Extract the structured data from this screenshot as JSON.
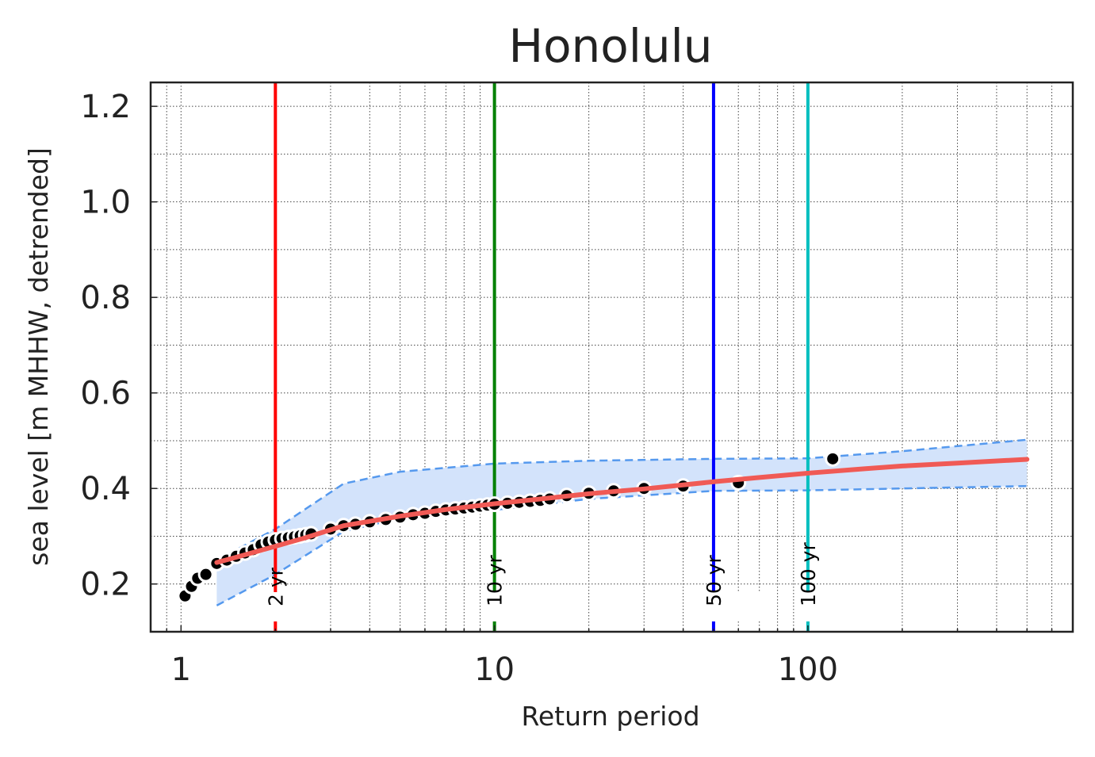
{
  "chart_data": {
    "type": "scatter",
    "title": "Honolulu",
    "xlabel": "Return period",
    "ylabel": "sea level [m MHHW, detrended]",
    "x_scale": "log",
    "xlim": [
      0.8,
      700
    ],
    "ylim": [
      0.1,
      1.25
    ],
    "x_ticks": [
      {
        "value": 1,
        "label": "1"
      },
      {
        "value": 10,
        "label": "10"
      },
      {
        "value": 100,
        "label": "100"
      }
    ],
    "y_ticks": [
      {
        "value": 0.2,
        "label": "0.2"
      },
      {
        "value": 0.4,
        "label": "0.4"
      },
      {
        "value": 0.6,
        "label": "0.6"
      },
      {
        "value": 0.8,
        "label": "0.8"
      },
      {
        "value": 1.0,
        "label": "1.0"
      },
      {
        "value": 1.2,
        "label": "1.2"
      }
    ],
    "grid": true,
    "return_levels": [
      {
        "period": 2,
        "label": "2 yr",
        "color": "#ff0000"
      },
      {
        "period": 10,
        "label": "10 yr",
        "color": "#008000"
      },
      {
        "period": 50,
        "label": "50 yr",
        "color": "#0000ff"
      },
      {
        "period": 100,
        "label": "100 yr",
        "color": "#00bfbf"
      }
    ],
    "fit_curve": {
      "color": "#f05a55",
      "x": [
        1.3,
        1.5,
        2,
        2.5,
        3.3,
        5,
        7,
        10,
        15,
        20,
        30,
        50,
        70,
        100,
        150,
        200,
        300,
        500
      ],
      "y": [
        0.245,
        0.256,
        0.279,
        0.297,
        0.322,
        0.342,
        0.356,
        0.368,
        0.38,
        0.389,
        0.399,
        0.414,
        0.423,
        0.432,
        0.441,
        0.447,
        0.453,
        0.461
      ]
    },
    "confidence_band": {
      "fill": "#d3e3fb",
      "edge_color": "#5599ee",
      "x": [
        1.3,
        2,
        3.3,
        5,
        10,
        20,
        50,
        100,
        200,
        500
      ],
      "upper": [
        0.25,
        0.315,
        0.41,
        0.435,
        0.452,
        0.458,
        0.462,
        0.463,
        0.478,
        0.502
      ],
      "lower": [
        0.155,
        0.22,
        0.31,
        0.338,
        0.355,
        0.378,
        0.395,
        0.396,
        0.4,
        0.405
      ]
    },
    "observations": {
      "color": "#000000",
      "x": [
        1.03,
        1.08,
        1.13,
        1.2,
        1.3,
        1.4,
        1.5,
        1.6,
        1.7,
        1.8,
        1.9,
        2.0,
        2.1,
        2.2,
        2.3,
        2.4,
        2.5,
        2.6,
        3.0,
        3.3,
        3.6,
        4.0,
        4.5,
        5.0,
        5.5,
        6.0,
        6.5,
        7.0,
        7.5,
        8.0,
        8.5,
        9.0,
        9.5,
        10.0,
        11.0,
        12.0,
        13.0,
        14.0,
        15.0,
        17.0,
        20.0,
        24.0,
        30.0,
        40.0,
        60.0,
        120.0
      ],
      "y": [
        0.175,
        0.195,
        0.212,
        0.22,
        0.243,
        0.25,
        0.258,
        0.265,
        0.272,
        0.282,
        0.288,
        0.292,
        0.295,
        0.297,
        0.299,
        0.301,
        0.303,
        0.305,
        0.315,
        0.322,
        0.325,
        0.33,
        0.335,
        0.34,
        0.345,
        0.348,
        0.352,
        0.355,
        0.357,
        0.359,
        0.361,
        0.363,
        0.365,
        0.367,
        0.369,
        0.371,
        0.373,
        0.375,
        0.378,
        0.385,
        0.39,
        0.395,
        0.4,
        0.405,
        0.412,
        0.462
      ]
    }
  }
}
